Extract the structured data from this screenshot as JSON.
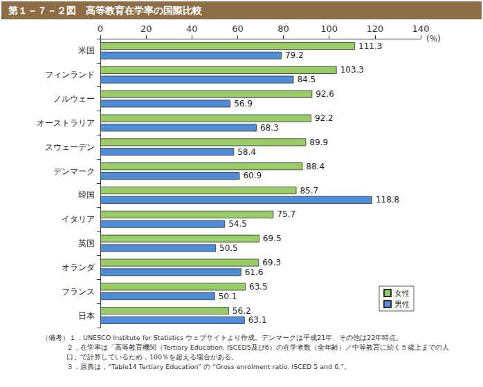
{
  "chart_data": {
    "type": "bar",
    "orientation": "horizontal",
    "title": "第１－７－２図　高等教育在学率の国際比較",
    "x_label": "(%)",
    "categories": [
      "米国",
      "フィンランド",
      "ノルウェー",
      "オーストラリア",
      "スウェーデン",
      "デンマーク",
      "韓国",
      "イタリア",
      "英国",
      "オランダ",
      "フランス",
      "日本"
    ],
    "series": [
      {
        "name": "女性",
        "color": "#99cc66",
        "values": [
          111.3,
          103.3,
          92.6,
          92.2,
          89.9,
          88.4,
          85.7,
          75.7,
          69.5,
          69.3,
          63.5,
          56.2
        ]
      },
      {
        "name": "男性",
        "color": "#4f8ed6",
        "values": [
          79.2,
          84.5,
          56.9,
          68.3,
          58.4,
          60.9,
          118.8,
          54.5,
          50.5,
          61.6,
          50.1,
          63.1
        ]
      }
    ],
    "xlim": [
      0,
      140
    ],
    "xticks": [
      0,
      20,
      40,
      60,
      80,
      100,
      120,
      140
    ],
    "grid": false,
    "legend": "bottom-right",
    "data_labels": true,
    "annotations": [
      "（備考）１．UNESCO Institute for Statistics ウェブサイトより作成。デンマークは平成21年、その他は22年時点。",
      "２．在学率は「高等教育機関（Tertiary Education, ISCED5及び6）の在学者数（全年齢）／中等教育に続く５歳上までの人口」で計算しているため，100％を超える場合がある。",
      "３．原典は，“Table14 Tertiary Education” の “Gross enrolment ratio. ISCED 5 and 6.”。"
    ]
  }
}
